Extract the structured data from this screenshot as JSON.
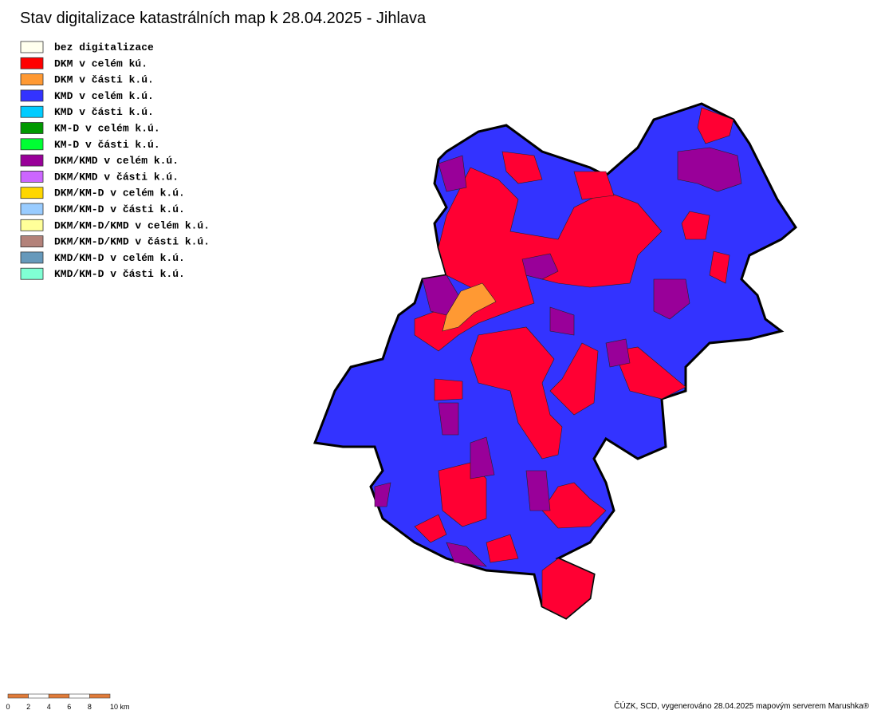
{
  "title": "Stav digitalizace katastrálních map k 28.04.2025 - Jihlava",
  "legend": [
    {
      "label": "bez digitalizace",
      "color": "#ffffee"
    },
    {
      "label": "DKM v celém kú.",
      "color": "#ff0000"
    },
    {
      "label": "DKM v části k.ú.",
      "color": "#ff9933"
    },
    {
      "label": "KMD v celém k.ú.",
      "color": "#3333ff"
    },
    {
      "label": "KMD v části k.ú.",
      "color": "#00ccff"
    },
    {
      "label": "KM-D v celém k.ú.",
      "color": "#009900"
    },
    {
      "label": "KM-D v části k.ú.",
      "color": "#00ff33"
    },
    {
      "label": "DKM/KMD v celém k.ú.",
      "color": "#990099"
    },
    {
      "label": "DKM/KMD v části k.ú.",
      "color": "#cc66ff"
    },
    {
      "label": "DKM/KM-D v celém k.ú.",
      "color": "#ffd700"
    },
    {
      "label": "DKM/KM-D v části k.ú.",
      "color": "#99ccff"
    },
    {
      "label": "DKM/KM-D/KMD v celém k.ú.",
      "color": "#ffff99"
    },
    {
      "label": "DKM/KM-D/KMD v části k.ú.",
      "color": "#b3827a"
    },
    {
      "label": "KMD/KM-D v celém k.ú.",
      "color": "#6699bb"
    },
    {
      "label": "KMD/KM-D v části k.ú.",
      "color": "#80ffd4"
    }
  ],
  "scale": {
    "labels": [
      "0",
      "2",
      "4",
      "6",
      "8",
      "10 km"
    ]
  },
  "credit": "ČÚZK, SCD, vygenerováno 28.04.2025 mapovým serverem Marushka®"
}
